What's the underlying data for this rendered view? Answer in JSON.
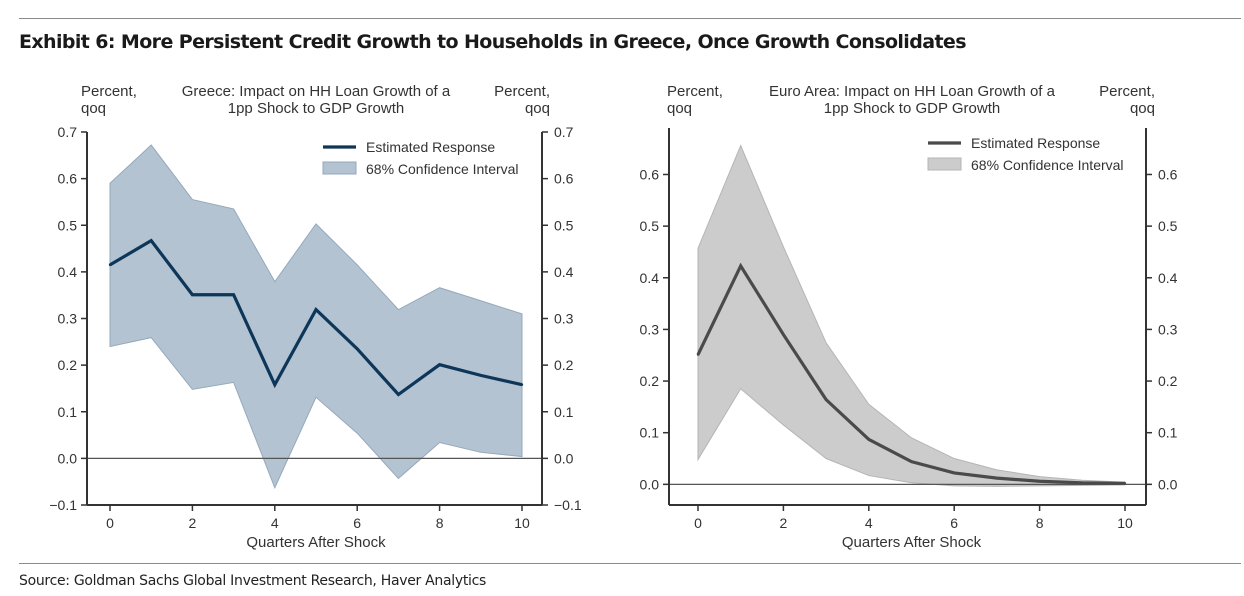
{
  "exhibit": {
    "title": "Exhibit 6: More Persistent Credit Growth to Households in Greece, Once Growth Consolidates",
    "source": "Source: Goldman Sachs Global Investment Research, Haver Analytics"
  },
  "chart_data": [
    {
      "type": "line",
      "title_line1": "Greece: Impact on HH Loan Growth of a",
      "title_line2": "1pp Shock to GDP Growth",
      "left_unit_line1": "Percent,",
      "left_unit_line2": "qoq",
      "right_unit_line1": "Percent,",
      "right_unit_line2": "qoq",
      "xlabel": "Quarters After Shock",
      "xlim": [
        -0.5,
        10.5
      ],
      "ylim": [
        -0.1,
        0.7
      ],
      "xticks": [
        "0",
        "2",
        "4",
        "6",
        "8",
        "10"
      ],
      "yticks": [
        "−0.1",
        "0.0",
        "0.1",
        "0.2",
        "0.3",
        "0.4",
        "0.5",
        "0.6",
        "0.7"
      ],
      "ytick_values": [
        -0.1,
        0.0,
        0.1,
        0.2,
        0.3,
        0.4,
        0.5,
        0.6,
        0.7
      ],
      "legend": [
        "Estimated Response",
        "68% Confidence Interval"
      ],
      "legend_position": "top-right",
      "colors": {
        "line": "#0d3659",
        "band": "#b3c3d1",
        "band_edge": "#94a9bc",
        "zero_line": "#555555"
      },
      "x": [
        0,
        1,
        2,
        3,
        4,
        5,
        6,
        7,
        8,
        9,
        10
      ],
      "series": [
        {
          "name": "Estimated Response",
          "values": [
            0.415,
            0.467,
            0.351,
            0.351,
            0.158,
            0.319,
            0.235,
            0.137,
            0.201,
            0.178,
            0.158
          ]
        },
        {
          "name": "68% CI Upper",
          "values": [
            0.59,
            0.672,
            0.555,
            0.535,
            0.379,
            0.503,
            0.415,
            0.319,
            0.366,
            0.338,
            0.31
          ]
        },
        {
          "name": "68% CI Lower",
          "values": [
            0.24,
            0.259,
            0.148,
            0.163,
            -0.063,
            0.131,
            0.054,
            -0.043,
            0.034,
            0.013,
            0.004
          ]
        }
      ]
    },
    {
      "type": "line",
      "title_line1": "Euro Area: Impact on HH Loan Growth of a",
      "title_line2": "1pp Shock to GDP Growth",
      "left_unit_line1": "Percent,",
      "left_unit_line2": "qoq",
      "right_unit_line1": "Percent,",
      "right_unit_line2": "qoq",
      "xlabel": "Quarters After Shock",
      "xlim": [
        -0.5,
        10.5
      ],
      "ylim": [
        -0.04,
        0.69
      ],
      "xticks": [
        "0",
        "2",
        "4",
        "6",
        "8",
        "10"
      ],
      "yticks": [
        "0.0",
        "0.1",
        "0.2",
        "0.3",
        "0.4",
        "0.5",
        "0.6"
      ],
      "ytick_values": [
        0.0,
        0.1,
        0.2,
        0.3,
        0.4,
        0.5,
        0.6
      ],
      "legend": [
        "Estimated Response",
        "68% Confidence Interval"
      ],
      "legend_position": "top-right",
      "colors": {
        "line": "#4a4a4a",
        "band": "#cccccc",
        "band_edge": "#b5b5b5",
        "zero_line": "#555555"
      },
      "x": [
        0,
        1,
        2,
        3,
        4,
        5,
        6,
        7,
        8,
        9,
        10
      ],
      "series": [
        {
          "name": "Estimated Response",
          "values": [
            0.251,
            0.423,
            0.29,
            0.164,
            0.087,
            0.044,
            0.022,
            0.012,
            0.006,
            0.003,
            0.002
          ]
        },
        {
          "name": "68% CI Upper",
          "values": [
            0.457,
            0.656,
            0.46,
            0.274,
            0.155,
            0.09,
            0.05,
            0.028,
            0.015,
            0.008,
            0.004
          ]
        },
        {
          "name": "68% CI Lower",
          "values": [
            0.048,
            0.185,
            0.115,
            0.05,
            0.017,
            0.003,
            -0.003,
            -0.004,
            -0.003,
            -0.002,
            -0.001
          ]
        }
      ]
    }
  ]
}
